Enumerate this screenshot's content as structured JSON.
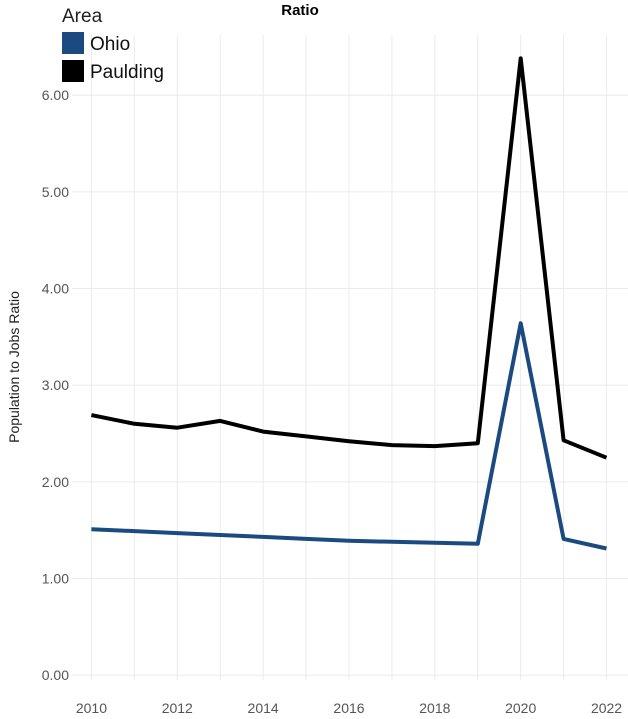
{
  "chart_data": {
    "type": "line",
    "title": "Ratio",
    "xlabel": "",
    "ylabel": "Population to Jobs Ratio",
    "x": [
      2010,
      2011,
      2012,
      2013,
      2014,
      2015,
      2016,
      2017,
      2018,
      2019,
      2020,
      2021,
      2022
    ],
    "x_ticks": [
      "2010",
      "2012",
      "2014",
      "2016",
      "2018",
      "2020",
      "2022"
    ],
    "y_ticks": [
      "0.00",
      "1.00",
      "2.00",
      "3.00",
      "4.00",
      "5.00",
      "6.00"
    ],
    "xlim": [
      2010,
      2022
    ],
    "ylim": [
      0,
      6.4
    ],
    "legend": {
      "title": "Area",
      "position": "top-left"
    },
    "grid": true,
    "series": [
      {
        "name": "Ohio",
        "color": "#1a4a80",
        "values": [
          1.51,
          1.49,
          1.47,
          1.45,
          1.43,
          1.41,
          1.39,
          1.38,
          1.37,
          1.36,
          3.64,
          1.41,
          1.31
        ]
      },
      {
        "name": "Paulding",
        "color": "#000000",
        "values": [
          2.69,
          2.6,
          2.56,
          2.63,
          2.52,
          2.47,
          2.42,
          2.38,
          2.37,
          2.4,
          6.38,
          2.43,
          2.25
        ]
      }
    ]
  }
}
